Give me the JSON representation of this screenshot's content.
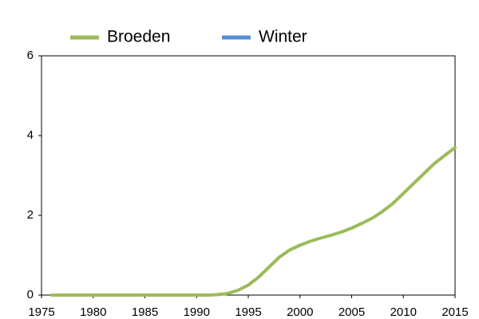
{
  "chart_data": {
    "type": "line",
    "x": [
      1976,
      1977,
      1978,
      1979,
      1980,
      1981,
      1982,
      1983,
      1984,
      1985,
      1986,
      1987,
      1988,
      1989,
      1990,
      1991,
      1992,
      1993,
      1994,
      1995,
      1996,
      1997,
      1998,
      1999,
      2000,
      2001,
      2002,
      2003,
      2004,
      2005,
      2006,
      2007,
      2008,
      2009,
      2010,
      2011,
      2012,
      2013,
      2014,
      2015
    ],
    "series": [
      {
        "name": "Broeden",
        "color": "#9bbb59",
        "values": [
          0,
          0,
          0,
          0,
          0,
          0,
          0,
          0,
          0,
          0,
          0,
          0,
          0,
          0,
          0,
          0,
          0.01,
          0.04,
          0.12,
          0.25,
          0.45,
          0.7,
          0.95,
          1.13,
          1.25,
          1.35,
          1.43,
          1.5,
          1.58,
          1.68,
          1.8,
          1.93,
          2.1,
          2.3,
          2.55,
          2.8,
          3.05,
          3.3,
          3.5,
          3.7
        ]
      },
      {
        "name": "Winter",
        "color": "#558ed5",
        "values": [
          null,
          null,
          null,
          null,
          null,
          null,
          null,
          null,
          null,
          null,
          null,
          null,
          null,
          null,
          null,
          null,
          null,
          null,
          null,
          null,
          null,
          null,
          null,
          null,
          null,
          null,
          null,
          null,
          null,
          null,
          null,
          null,
          null,
          null,
          null,
          null,
          null,
          null,
          null,
          null
        ]
      }
    ],
    "xlim": [
      1975,
      2015
    ],
    "xticks": [
      1975,
      1980,
      1985,
      1990,
      1995,
      2000,
      2005,
      2010,
      2015
    ],
    "ylim": [
      0,
      6
    ],
    "yticks": [
      0,
      2,
      4,
      6
    ]
  }
}
